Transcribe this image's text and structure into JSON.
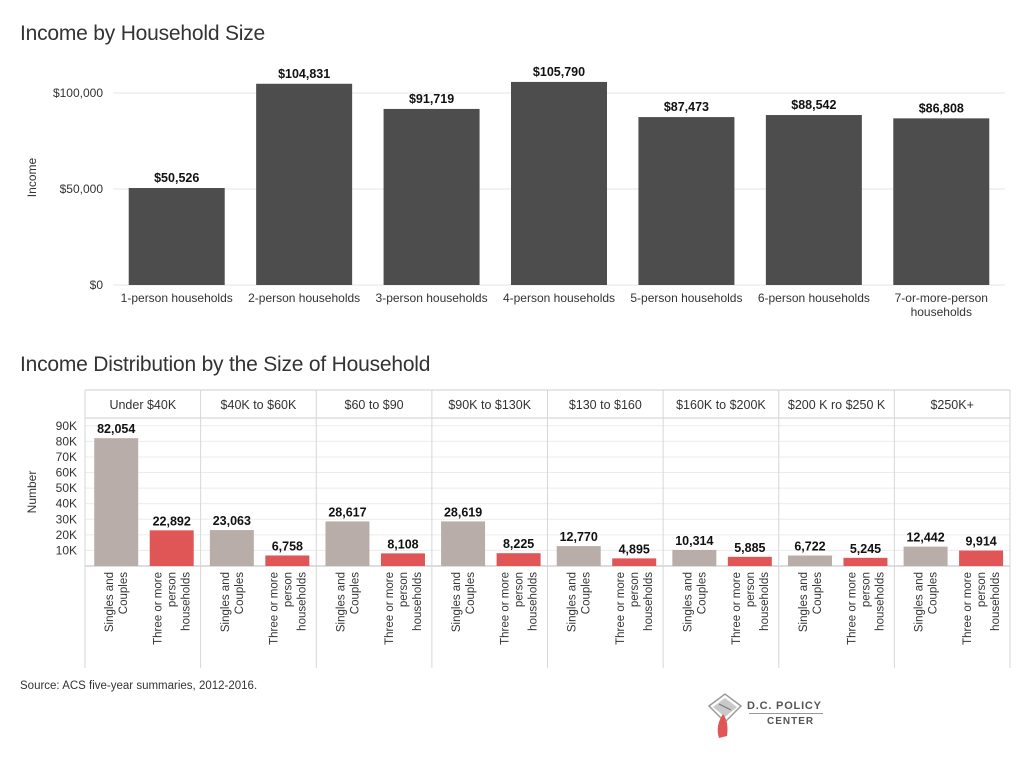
{
  "chart_data": [
    {
      "type": "bar",
      "title": "Income by Household Size",
      "ylabel": "Income",
      "ylim": [
        0,
        112000
      ],
      "yticks": [
        "$0",
        "$50,000",
        "$100,000"
      ],
      "ytick_values": [
        0,
        50000,
        100000
      ],
      "categories": [
        "1-person households",
        "2-person households",
        "3-person households",
        "4-person households",
        "5-person households",
        "6-person households",
        "7-or-more-person households"
      ],
      "values": [
        50526,
        104831,
        91719,
        105790,
        87473,
        88542,
        86808
      ],
      "data_labels": [
        "$50,526",
        "$104,831",
        "$91,719",
        "$105,790",
        "$87,473",
        "$88,542",
        "$86,808"
      ],
      "bar_color": "#4d4d4d"
    },
    {
      "type": "bar",
      "title": "Income Distribution by the Size of Household",
      "ylabel": "Number",
      "ylim": [
        0,
        95000
      ],
      "yticks": [
        "10K",
        "20K",
        "30K",
        "40K",
        "50K",
        "60K",
        "70K",
        "80K",
        "90K"
      ],
      "ytick_values": [
        10000,
        20000,
        30000,
        40000,
        50000,
        60000,
        70000,
        80000,
        90000
      ],
      "groups": [
        "Under $40K",
        "$40K to $60K",
        "$60 to $90",
        "$90K to $130K",
        "$130 to $160",
        "$160K to $200K",
        "$200 K ro $250 K",
        "$250K+"
      ],
      "series": [
        {
          "name": "Singles and Couples",
          "color": "#b8ada8",
          "values": [
            82054,
            23063,
            28617,
            28619,
            12770,
            10314,
            6722,
            12442
          ],
          "labels": [
            "82,054",
            "23,063",
            "28,617",
            "28,619",
            "12,770",
            "10,314",
            "6,722",
            "12,442"
          ]
        },
        {
          "name": "Three or more person households",
          "color": "#e05656",
          "values": [
            22892,
            6758,
            8108,
            8225,
            4895,
            5885,
            5245,
            9914
          ],
          "labels": [
            "22,892",
            "6,758",
            "8,108",
            "8,225",
            "4,895",
            "5,885",
            "5,245",
            "9,914"
          ]
        }
      ]
    }
  ],
  "source": "Source: ACS five-year summaries, 2012-2016.",
  "logo": {
    "line1": "D.C. POLICY",
    "line2": "CENTER"
  }
}
